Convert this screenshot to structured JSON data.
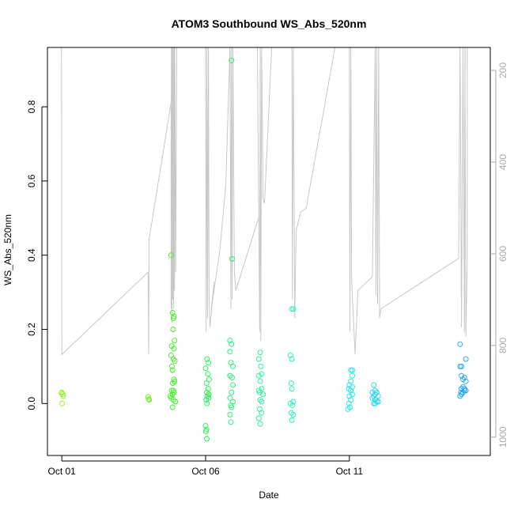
{
  "chart_data": {
    "type": "scatter",
    "title": "ATOM3 Southbound WS_Abs_520nm",
    "xlabel": "Date",
    "ylabel": "WS_Abs_520nm",
    "x_ticks": [
      "Oct 01",
      "Oct 06",
      "Oct 11"
    ],
    "y_ticks": [
      "0.0",
      "0.2",
      "0.4",
      "0.6",
      "0.8"
    ],
    "y2_ticks": [
      "200",
      "400",
      "600",
      "800",
      "1000"
    ],
    "y2_reversed": true,
    "ylim": [
      -0.14,
      0.96
    ],
    "y2lim": [
      150,
      1040
    ],
    "xlim_days": [
      0.5,
      15.9
    ],
    "colors": {
      "axis": "#000000",
      "altitude_line": "#c8c8c8",
      "right_axis": "#aaaaaa"
    },
    "series": [
      {
        "color": "#9aef2a",
        "points": [
          [
            1.0,
            0.03
          ],
          [
            1.03,
            0.025
          ],
          [
            1.01,
            0.0
          ],
          [
            1.05,
            0.02
          ],
          [
            0.99,
            0.028
          ]
        ]
      },
      {
        "color": "#6df02a",
        "points": [
          [
            4.0,
            0.018
          ],
          [
            4.02,
            0.012
          ],
          [
            4.04,
            0.01
          ]
        ]
      },
      {
        "color": "#44f02a",
        "points": [
          [
            4.8,
            0.4
          ],
          [
            4.85,
            0.245
          ],
          [
            4.9,
            0.235
          ],
          [
            4.88,
            0.23
          ],
          [
            4.87,
            0.2
          ],
          [
            4.92,
            0.17
          ],
          [
            4.82,
            0.155
          ],
          [
            4.9,
            0.148
          ],
          [
            4.8,
            0.13
          ],
          [
            4.88,
            0.12
          ],
          [
            4.93,
            0.115
          ],
          [
            4.83,
            0.1
          ],
          [
            4.85,
            0.09
          ],
          [
            4.9,
            0.065
          ],
          [
            4.92,
            0.06
          ],
          [
            4.86,
            0.055
          ],
          [
            4.88,
            0.035
          ],
          [
            4.82,
            0.035
          ],
          [
            4.9,
            0.03
          ],
          [
            4.85,
            0.025
          ],
          [
            4.78,
            0.02
          ],
          [
            4.88,
            0.01
          ],
          [
            4.95,
            0.005
          ],
          [
            4.85,
            -0.01
          ],
          [
            4.8,
            0.015
          ]
        ]
      },
      {
        "color": "#2ef05a",
        "points": [
          [
            6.05,
            0.12
          ],
          [
            6.1,
            0.11
          ],
          [
            6.0,
            0.095
          ],
          [
            6.08,
            0.08
          ],
          [
            6.12,
            0.065
          ],
          [
            6.03,
            0.055
          ],
          [
            6.09,
            0.04
          ],
          [
            6.04,
            0.03
          ],
          [
            6.11,
            0.025
          ],
          [
            6.06,
            0.02
          ],
          [
            6.1,
            0.015
          ],
          [
            6.02,
            0.01
          ],
          [
            6.05,
            0.0
          ],
          [
            6.0,
            -0.06
          ],
          [
            6.03,
            -0.07
          ],
          [
            6.01,
            -0.075
          ],
          [
            6.04,
            -0.095
          ]
        ]
      },
      {
        "color": "#2ef07a",
        "points": [
          [
            6.9,
            0.925
          ],
          [
            6.92,
            0.39
          ],
          [
            6.85,
            0.17
          ],
          [
            6.9,
            0.16
          ],
          [
            6.85,
            0.14
          ],
          [
            6.88,
            0.11
          ],
          [
            6.95,
            0.1
          ],
          [
            6.85,
            0.075
          ],
          [
            6.92,
            0.07
          ],
          [
            6.95,
            0.05
          ],
          [
            6.9,
            0.03
          ],
          [
            6.85,
            0.015
          ],
          [
            6.95,
            0.005
          ],
          [
            6.88,
            -0.005
          ],
          [
            6.9,
            -0.01
          ],
          [
            6.85,
            -0.03
          ],
          [
            6.88,
            -0.05
          ]
        ]
      },
      {
        "color": "#2ef09e",
        "points": [
          [
            7.9,
            0.138
          ],
          [
            7.85,
            0.12
          ],
          [
            7.92,
            0.1
          ],
          [
            7.95,
            0.08
          ],
          [
            7.85,
            0.075
          ],
          [
            7.9,
            0.06
          ],
          [
            7.95,
            0.04
          ],
          [
            7.88,
            0.03
          ],
          [
            8.0,
            0.025
          ],
          [
            7.85,
            0.035
          ],
          [
            7.9,
            0.01
          ],
          [
            7.95,
            0.005
          ],
          [
            7.88,
            -0.015
          ],
          [
            7.95,
            -0.025
          ],
          [
            7.85,
            -0.04
          ],
          [
            7.9,
            -0.055
          ]
        ]
      },
      {
        "color": "#2ef0bf",
        "points": [
          [
            9.05,
            0.255
          ],
          [
            9.0,
            0.255
          ],
          [
            8.95,
            0.13
          ],
          [
            9.0,
            0.12
          ],
          [
            8.98,
            0.055
          ],
          [
            9.0,
            0.04
          ],
          [
            9.05,
            0.005
          ],
          [
            8.95,
            0.0
          ],
          [
            9.02,
            -0.005
          ],
          [
            8.98,
            -0.025
          ],
          [
            9.05,
            -0.03
          ],
          [
            9.0,
            -0.045
          ]
        ]
      },
      {
        "color": "#2ee6f0",
        "points": [
          [
            11.1,
            0.09
          ],
          [
            11.05,
            0.09
          ],
          [
            11.1,
            0.075
          ],
          [
            11.05,
            0.06
          ],
          [
            11.0,
            0.05
          ],
          [
            11.1,
            0.045
          ],
          [
            10.98,
            0.04
          ],
          [
            11.05,
            0.035
          ],
          [
            11.1,
            0.025
          ],
          [
            11.0,
            0.02
          ],
          [
            11.05,
            0.01
          ],
          [
            10.98,
            0.0
          ],
          [
            11.02,
            -0.01
          ],
          [
            10.95,
            -0.015
          ]
        ]
      },
      {
        "color": "#2ed6f0",
        "points": [
          [
            11.85,
            0.05
          ],
          [
            11.9,
            0.035
          ],
          [
            11.8,
            0.03
          ],
          [
            11.95,
            0.03
          ],
          [
            11.9,
            0.025
          ],
          [
            11.85,
            0.02
          ],
          [
            12.0,
            0.02
          ],
          [
            11.8,
            0.015
          ],
          [
            11.9,
            0.01
          ],
          [
            11.95,
            0.005
          ],
          [
            12.0,
            0.005
          ],
          [
            11.85,
            0.0
          ],
          [
            11.9,
            0.0
          ]
        ]
      },
      {
        "color": "#2eaaf0",
        "points": [
          [
            14.85,
            0.16
          ],
          [
            15.05,
            0.12
          ],
          [
            14.9,
            0.1
          ],
          [
            14.85,
            0.1
          ],
          [
            14.9,
            0.075
          ],
          [
            15.0,
            0.07
          ],
          [
            14.95,
            0.065
          ],
          [
            15.05,
            0.06
          ],
          [
            14.95,
            0.045
          ],
          [
            15.0,
            0.04
          ],
          [
            14.9,
            0.04
          ],
          [
            15.05,
            0.035
          ],
          [
            14.95,
            0.03
          ],
          [
            15.0,
            0.035
          ],
          [
            14.88,
            0.03
          ],
          [
            14.9,
            0.025
          ],
          [
            14.85,
            0.02
          ]
        ]
      }
    ],
    "altitude_line": [
      [
        0.5,
        150
      ],
      [
        0.99,
        150
      ],
      [
        1.0,
        820
      ],
      [
        4.0,
        640
      ],
      [
        4.02,
        820
      ],
      [
        4.03,
        570
      ],
      [
        4.8,
        270
      ],
      [
        4.8,
        720
      ],
      [
        4.81,
        150
      ],
      [
        4.83,
        750
      ],
      [
        4.84,
        150
      ],
      [
        4.86,
        700
      ],
      [
        4.87,
        150
      ],
      [
        4.89,
        720
      ],
      [
        4.9,
        150
      ],
      [
        4.92,
        680
      ],
      [
        4.93,
        150
      ],
      [
        4.96,
        640
      ],
      [
        5.0,
        150
      ],
      [
        6.0,
        150
      ],
      [
        6.02,
        770
      ],
      [
        6.05,
        150
      ],
      [
        6.07,
        740
      ],
      [
        6.1,
        150
      ],
      [
        6.12,
        690
      ],
      [
        6.15,
        760
      ],
      [
        6.3,
        660
      ],
      [
        6.2,
        720
      ],
      [
        6.5,
        590
      ],
      [
        6.7,
        450
      ],
      [
        6.85,
        150
      ],
      [
        6.88,
        720
      ],
      [
        6.9,
        150
      ],
      [
        6.92,
        700
      ],
      [
        6.95,
        150
      ],
      [
        7.0,
        640
      ],
      [
        7.05,
        680
      ],
      [
        7.85,
        520
      ],
      [
        7.8,
        150
      ],
      [
        7.88,
        770
      ],
      [
        7.9,
        150
      ],
      [
        7.92,
        790
      ],
      [
        7.95,
        150
      ],
      [
        8.0,
        480
      ],
      [
        8.05,
        490
      ],
      [
        8.3,
        150
      ],
      [
        8.5,
        150
      ],
      [
        9.0,
        150
      ],
      [
        9.02,
        700
      ],
      [
        9.05,
        150
      ],
      [
        9.1,
        740
      ],
      [
        9.15,
        550
      ],
      [
        9.3,
        510
      ],
      [
        9.5,
        500
      ],
      [
        10.5,
        150
      ],
      [
        11.0,
        150
      ],
      [
        11.02,
        770
      ],
      [
        11.05,
        150
      ],
      [
        11.08,
        660
      ],
      [
        11.2,
        820
      ],
      [
        11.3,
        680
      ],
      [
        11.8,
        650
      ],
      [
        11.9,
        150
      ],
      [
        11.92,
        690
      ],
      [
        11.95,
        150
      ],
      [
        11.98,
        710
      ],
      [
        12.02,
        150
      ],
      [
        12.05,
        740
      ],
      [
        12.1,
        720
      ],
      [
        14.8,
        610
      ],
      [
        14.85,
        150
      ],
      [
        14.9,
        760
      ],
      [
        14.95,
        150
      ],
      [
        15.0,
        770
      ],
      [
        15.02,
        150
      ],
      [
        15.05,
        780
      ],
      [
        15.1,
        620
      ],
      [
        15.1,
        150
      ]
    ]
  }
}
